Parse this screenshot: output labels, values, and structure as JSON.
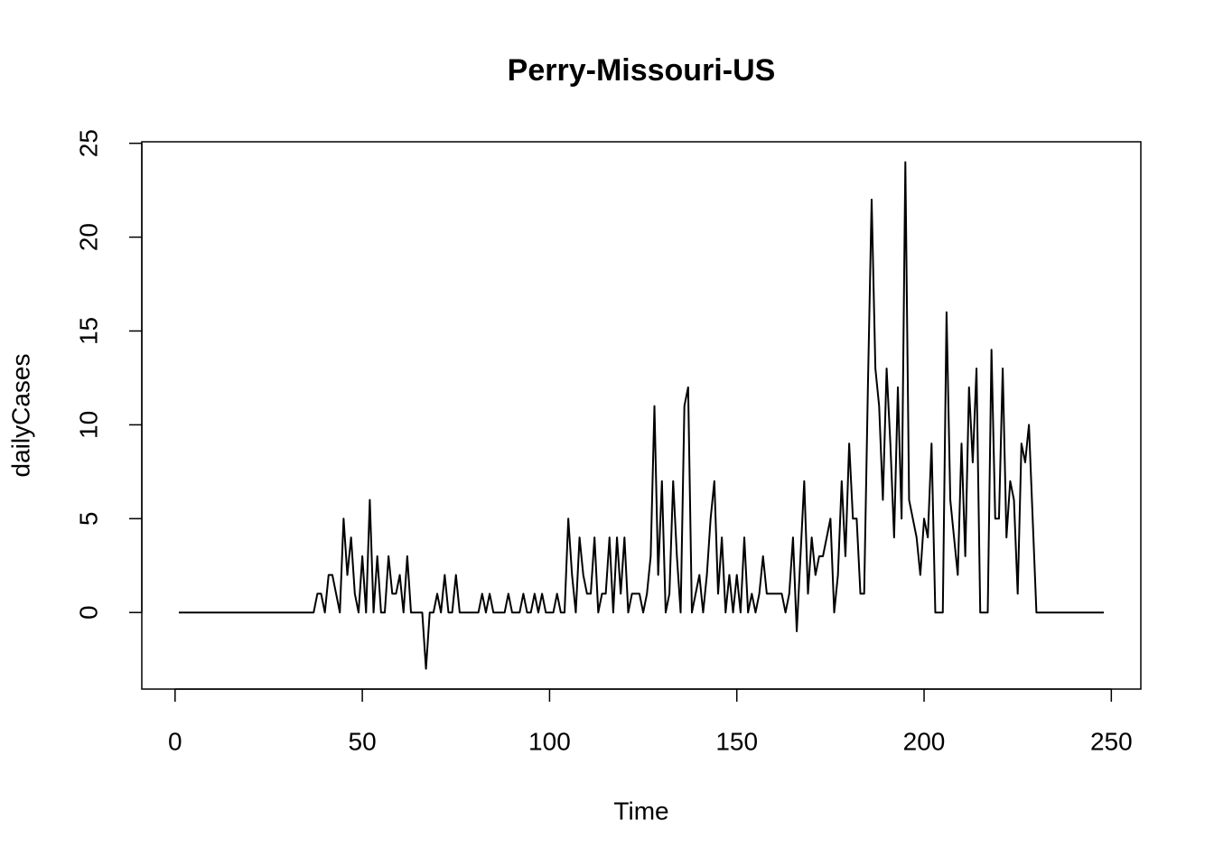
{
  "chart_data": {
    "type": "line",
    "title": "Perry-Missouri-US",
    "x_label": "Time",
    "y_label": "dailyCases",
    "color": "#000000",
    "xlim": [
      -8.88,
      257.88
    ],
    "ylim": [
      -4.08,
      25.08
    ],
    "xticks": [
      0,
      50,
      100,
      150,
      200,
      250
    ],
    "yticks": [
      0,
      5,
      10,
      15,
      20,
      25
    ],
    "series": [
      {
        "name": "dailyCases",
        "color": "#000000",
        "x": [
          1,
          2,
          3,
          4,
          5,
          6,
          7,
          8,
          9,
          10,
          11,
          12,
          13,
          14,
          15,
          16,
          17,
          18,
          19,
          20,
          21,
          22,
          23,
          24,
          25,
          26,
          27,
          28,
          29,
          30,
          31,
          32,
          33,
          34,
          35,
          36,
          37,
          38,
          39,
          40,
          41,
          42,
          43,
          44,
          45,
          46,
          47,
          48,
          49,
          50,
          51,
          52,
          53,
          54,
          55,
          56,
          57,
          58,
          59,
          60,
          61,
          62,
          63,
          64,
          65,
          66,
          67,
          68,
          69,
          70,
          71,
          72,
          73,
          74,
          75,
          76,
          77,
          78,
          79,
          80,
          81,
          82,
          83,
          84,
          85,
          86,
          87,
          88,
          89,
          90,
          91,
          92,
          93,
          94,
          95,
          96,
          97,
          98,
          99,
          100,
          101,
          102,
          103,
          104,
          105,
          106,
          107,
          108,
          109,
          110,
          111,
          112,
          113,
          114,
          115,
          116,
          117,
          118,
          119,
          120,
          121,
          122,
          123,
          124,
          125,
          126,
          127,
          128,
          129,
          130,
          131,
          132,
          133,
          134,
          135,
          136,
          137,
          138,
          139,
          140,
          141,
          142,
          143,
          144,
          145,
          146,
          147,
          148,
          149,
          150,
          151,
          152,
          153,
          154,
          155,
          156,
          157,
          158,
          159,
          160,
          161,
          162,
          163,
          164,
          165,
          166,
          167,
          168,
          169,
          170,
          171,
          172,
          173,
          174,
          175,
          176,
          177,
          178,
          179,
          180,
          181,
          182,
          183,
          184,
          185,
          186,
          187,
          188,
          189,
          190,
          191,
          192,
          193,
          194,
          195,
          196,
          197,
          198,
          199,
          200,
          201,
          202,
          203,
          204,
          205,
          206,
          207,
          208,
          209,
          210,
          211,
          212,
          213,
          214,
          215,
          216,
          217,
          218,
          219,
          220,
          221,
          222,
          223,
          224,
          225,
          226,
          227,
          228,
          229,
          230,
          231,
          232,
          233,
          234,
          235,
          236,
          237,
          238,
          239,
          240,
          241,
          242,
          243,
          244,
          245,
          246,
          247,
          248
        ],
        "values": [
          0,
          0,
          0,
          0,
          0,
          0,
          0,
          0,
          0,
          0,
          0,
          0,
          0,
          0,
          0,
          0,
          0,
          0,
          0,
          0,
          0,
          0,
          0,
          0,
          0,
          0,
          0,
          0,
          0,
          0,
          0,
          0,
          0,
          0,
          0,
          0,
          0,
          1,
          1,
          0,
          2,
          2,
          1,
          0,
          5,
          2,
          4,
          1,
          0,
          3,
          0,
          6,
          0,
          3,
          0,
          0,
          3,
          1,
          1,
          2,
          0,
          3,
          0,
          0,
          0,
          0,
          -3,
          0,
          0,
          1,
          0,
          2,
          0,
          0,
          2,
          0,
          0,
          0,
          0,
          0,
          0,
          1,
          0,
          1,
          0,
          0,
          0,
          0,
          1,
          0,
          0,
          0,
          1,
          0,
          0,
          1,
          0,
          1,
          0,
          0,
          0,
          1,
          0,
          0,
          5,
          2,
          0,
          4,
          2,
          1,
          1,
          4,
          0,
          1,
          1,
          4,
          0,
          4,
          1,
          4,
          0,
          1,
          1,
          1,
          0,
          1,
          3,
          11,
          2,
          7,
          0,
          1,
          7,
          3,
          0,
          11,
          12,
          0,
          1,
          2,
          0,
          2,
          5,
          7,
          1,
          4,
          0,
          2,
          0,
          2,
          0,
          4,
          0,
          1,
          0,
          1,
          3,
          1,
          1,
          1,
          1,
          1,
          0,
          1,
          4,
          -1,
          3,
          7,
          1,
          4,
          2,
          3,
          3,
          4,
          5,
          0,
          2,
          7,
          3,
          9,
          5,
          5,
          1,
          1,
          12,
          22,
          13,
          11,
          6,
          13,
          9,
          4,
          12,
          5,
          24,
          6,
          5,
          4,
          2,
          5,
          4,
          9,
          0,
          0,
          0,
          16,
          6,
          4,
          2,
          9,
          3,
          12,
          8,
          13,
          0,
          0,
          0,
          14,
          5,
          5,
          13,
          4,
          7,
          6,
          1,
          9,
          8,
          10,
          5,
          0,
          0,
          0,
          0,
          0,
          0,
          0,
          0,
          0,
          0,
          0,
          0,
          0,
          0,
          0,
          0,
          0,
          0,
          0
        ]
      }
    ]
  }
}
